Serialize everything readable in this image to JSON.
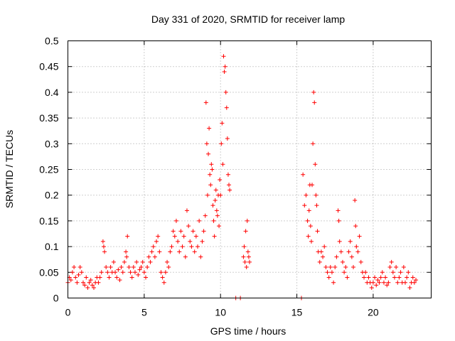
{
  "chart_data": {
    "type": "scatter",
    "title": "Day 331 of 2020, SRMTID for receiver lamp",
    "xlabel": "GPS time / hours",
    "ylabel": "SRMTID / TECUs",
    "xlim": [
      0,
      23.8
    ],
    "ylim": [
      0,
      0.5
    ],
    "x_ticks": [
      0,
      5,
      10,
      15,
      20
    ],
    "y_ticks": [
      0,
      0.05,
      0.1,
      0.15,
      0.2,
      0.25,
      0.3,
      0.35,
      0.4,
      0.45,
      0.5
    ],
    "x_tick_labels": [
      "0",
      "5",
      "10",
      "15",
      "20"
    ],
    "y_tick_labels": [
      "0",
      "0.05",
      "0.1",
      "0.15",
      "0.2",
      "0.25",
      "0.3",
      "0.35",
      "0.4",
      "0.45",
      "0.5"
    ],
    "grid": true,
    "marker": "plus",
    "color": "#ff0000",
    "series": [
      {
        "name": "SRMTID",
        "points": [
          [
            0.0,
            0.03
          ],
          [
            0.1,
            0.04
          ],
          [
            0.2,
            0.035
          ],
          [
            0.3,
            0.05
          ],
          [
            0.4,
            0.06
          ],
          [
            0.5,
            0.04
          ],
          [
            0.6,
            0.03
          ],
          [
            0.7,
            0.045
          ],
          [
            0.8,
            0.06
          ],
          [
            0.9,
            0.05
          ],
          [
            1.0,
            0.03
          ],
          [
            1.1,
            0.025
          ],
          [
            1.2,
            0.04
          ],
          [
            1.3,
            0.02
          ],
          [
            1.4,
            0.03
          ],
          [
            1.5,
            0.035
          ],
          [
            1.6,
            0.025
          ],
          [
            1.7,
            0.02
          ],
          [
            1.8,
            0.03
          ],
          [
            1.9,
            0.04
          ],
          [
            2.0,
            0.03
          ],
          [
            2.1,
            0.04
          ],
          [
            2.2,
            0.05
          ],
          [
            2.3,
            0.11
          ],
          [
            2.35,
            0.1
          ],
          [
            2.4,
            0.09
          ],
          [
            2.5,
            0.06
          ],
          [
            2.6,
            0.05
          ],
          [
            2.7,
            0.04
          ],
          [
            2.8,
            0.06
          ],
          [
            2.9,
            0.05
          ],
          [
            3.0,
            0.07
          ],
          [
            3.1,
            0.05
          ],
          [
            3.2,
            0.04
          ],
          [
            3.3,
            0.055
          ],
          [
            3.4,
            0.035
          ],
          [
            3.5,
            0.06
          ],
          [
            3.6,
            0.05
          ],
          [
            3.7,
            0.07
          ],
          [
            3.8,
            0.09
          ],
          [
            3.85,
            0.08
          ],
          [
            3.9,
            0.12
          ],
          [
            4.0,
            0.06
          ],
          [
            4.1,
            0.05
          ],
          [
            4.2,
            0.04
          ],
          [
            4.3,
            0.06
          ],
          [
            4.4,
            0.05
          ],
          [
            4.5,
            0.07
          ],
          [
            4.6,
            0.045
          ],
          [
            4.7,
            0.055
          ],
          [
            4.8,
            0.06
          ],
          [
            4.9,
            0.07
          ],
          [
            5.0,
            0.05
          ],
          [
            5.1,
            0.04
          ],
          [
            5.2,
            0.06
          ],
          [
            5.3,
            0.08
          ],
          [
            5.4,
            0.07
          ],
          [
            5.5,
            0.09
          ],
          [
            5.6,
            0.1
          ],
          [
            5.7,
            0.08
          ],
          [
            5.8,
            0.11
          ],
          [
            5.9,
            0.12
          ],
          [
            6.0,
            0.09
          ],
          [
            6.1,
            0.05
          ],
          [
            6.2,
            0.04
          ],
          [
            6.3,
            0.03
          ],
          [
            6.4,
            0.05
          ],
          [
            6.5,
            0.07
          ],
          [
            6.6,
            0.06
          ],
          [
            6.7,
            0.09
          ],
          [
            6.8,
            0.1
          ],
          [
            6.9,
            0.13
          ],
          [
            7.0,
            0.12
          ],
          [
            7.1,
            0.15
          ],
          [
            7.2,
            0.11
          ],
          [
            7.3,
            0.09
          ],
          [
            7.4,
            0.13
          ],
          [
            7.5,
            0.1
          ],
          [
            7.6,
            0.12
          ],
          [
            7.7,
            0.08
          ],
          [
            7.8,
            0.17
          ],
          [
            7.9,
            0.14
          ],
          [
            8.0,
            0.11
          ],
          [
            8.1,
            0.1
          ],
          [
            8.2,
            0.13
          ],
          [
            8.3,
            0.09
          ],
          [
            8.4,
            0.12
          ],
          [
            8.5,
            0.1
          ],
          [
            8.6,
            0.15
          ],
          [
            8.7,
            0.08
          ],
          [
            8.8,
            0.11
          ],
          [
            8.9,
            0.13
          ],
          [
            9.0,
            0.16
          ],
          [
            9.05,
            0.38
          ],
          [
            9.1,
            0.3
          ],
          [
            9.15,
            0.2
          ],
          [
            9.2,
            0.28
          ],
          [
            9.25,
            0.33
          ],
          [
            9.3,
            0.24
          ],
          [
            9.35,
            0.22
          ],
          [
            9.4,
            0.26
          ],
          [
            9.45,
            0.25
          ],
          [
            9.5,
            0.18
          ],
          [
            9.55,
            0.15
          ],
          [
            9.6,
            0.12
          ],
          [
            9.65,
            0.19
          ],
          [
            9.7,
            0.21
          ],
          [
            9.75,
            0.17
          ],
          [
            9.8,
            0.16
          ],
          [
            9.85,
            0.2
          ],
          [
            9.9,
            0.14
          ],
          [
            9.95,
            0.23
          ],
          [
            10.0,
            0.2
          ],
          [
            10.05,
            0.3
          ],
          [
            10.1,
            0.34
          ],
          [
            10.15,
            0.26
          ],
          [
            10.2,
            0.47
          ],
          [
            10.25,
            0.44
          ],
          [
            10.3,
            0.45
          ],
          [
            10.35,
            0.4
          ],
          [
            10.4,
            0.37
          ],
          [
            10.45,
            0.31
          ],
          [
            10.5,
            0.24
          ],
          [
            10.55,
            0.22
          ],
          [
            10.6,
            0.21
          ],
          [
            11.0,
            0.0
          ],
          [
            11.3,
            0.0
          ],
          [
            11.5,
            0.08
          ],
          [
            11.55,
            0.1
          ],
          [
            11.6,
            0.07
          ],
          [
            11.65,
            0.13
          ],
          [
            11.7,
            0.06
          ],
          [
            11.75,
            0.15
          ],
          [
            11.8,
            0.09
          ],
          [
            11.85,
            0.08
          ],
          [
            11.9,
            0.07
          ],
          [
            15.3,
            0.0
          ],
          [
            15.4,
            0.24
          ],
          [
            15.5,
            0.18
          ],
          [
            15.6,
            0.2
          ],
          [
            15.7,
            0.15
          ],
          [
            15.75,
            0.12
          ],
          [
            15.8,
            0.17
          ],
          [
            15.85,
            0.22
          ],
          [
            15.9,
            0.14
          ],
          [
            15.95,
            0.11
          ],
          [
            16.0,
            0.22
          ],
          [
            16.05,
            0.3
          ],
          [
            16.1,
            0.4
          ],
          [
            16.15,
            0.38
          ],
          [
            16.2,
            0.26
          ],
          [
            16.25,
            0.2
          ],
          [
            16.3,
            0.18
          ],
          [
            16.35,
            0.13
          ],
          [
            16.4,
            0.09
          ],
          [
            16.5,
            0.07
          ],
          [
            16.6,
            0.09
          ],
          [
            16.7,
            0.08
          ],
          [
            16.8,
            0.1
          ],
          [
            16.9,
            0.06
          ],
          [
            17.0,
            0.05
          ],
          [
            17.1,
            0.04
          ],
          [
            17.2,
            0.06
          ],
          [
            17.3,
            0.05
          ],
          [
            17.4,
            0.03
          ],
          [
            17.5,
            0.06
          ],
          [
            17.6,
            0.08
          ],
          [
            17.7,
            0.17
          ],
          [
            17.75,
            0.15
          ],
          [
            17.8,
            0.11
          ],
          [
            17.9,
            0.09
          ],
          [
            18.0,
            0.07
          ],
          [
            18.1,
            0.05
          ],
          [
            18.2,
            0.06
          ],
          [
            18.3,
            0.04
          ],
          [
            18.4,
            0.09
          ],
          [
            18.5,
            0.11
          ],
          [
            18.6,
            0.08
          ],
          [
            18.7,
            0.06
          ],
          [
            18.8,
            0.19
          ],
          [
            18.85,
            0.14
          ],
          [
            18.9,
            0.1
          ],
          [
            19.0,
            0.09
          ],
          [
            19.1,
            0.12
          ],
          [
            19.2,
            0.07
          ],
          [
            19.3,
            0.05
          ],
          [
            19.4,
            0.04
          ],
          [
            19.5,
            0.05
          ],
          [
            19.6,
            0.03
          ],
          [
            19.7,
            0.04
          ],
          [
            19.8,
            0.03
          ],
          [
            19.9,
            0.02
          ],
          [
            20.0,
            0.03
          ],
          [
            20.1,
            0.04
          ],
          [
            20.2,
            0.025
          ],
          [
            20.3,
            0.035
          ],
          [
            20.4,
            0.03
          ],
          [
            20.5,
            0.04
          ],
          [
            20.6,
            0.05
          ],
          [
            20.7,
            0.03
          ],
          [
            20.8,
            0.04
          ],
          [
            20.9,
            0.025
          ],
          [
            21.0,
            0.03
          ],
          [
            21.1,
            0.06
          ],
          [
            21.2,
            0.07
          ],
          [
            21.3,
            0.05
          ],
          [
            21.4,
            0.04
          ],
          [
            21.5,
            0.06
          ],
          [
            21.6,
            0.03
          ],
          [
            21.7,
            0.04
          ],
          [
            21.8,
            0.05
          ],
          [
            21.9,
            0.03
          ],
          [
            22.0,
            0.06
          ],
          [
            22.1,
            0.03
          ],
          [
            22.2,
            0.04
          ],
          [
            22.3,
            0.05
          ],
          [
            22.4,
            0.02
          ],
          [
            22.5,
            0.03
          ],
          [
            22.6,
            0.04
          ],
          [
            22.7,
            0.03
          ],
          [
            22.8,
            0.035
          ]
        ]
      }
    ]
  }
}
